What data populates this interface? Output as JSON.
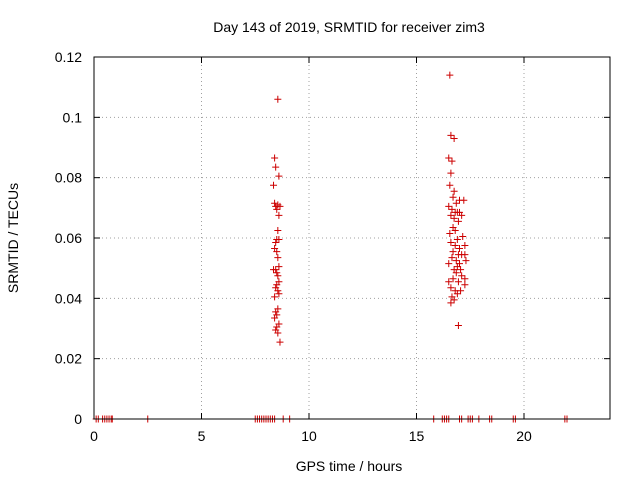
{
  "chart_data": {
    "type": "scatter",
    "title": "Day 143 of 2019, SRMTID for receiver zim3",
    "xlabel": "GPS time / hours",
    "ylabel": "SRMTID / TECUs",
    "xlim": [
      0,
      24
    ],
    "ylim": [
      0,
      0.12
    ],
    "xticks": [
      0,
      5,
      10,
      15,
      20
    ],
    "xtick_labels": [
      "0",
      "5",
      "10",
      "15",
      "20"
    ],
    "yticks": [
      0,
      0.02,
      0.04,
      0.06,
      0.08,
      0.1,
      0.12
    ],
    "ytick_labels": [
      "0",
      "0.02",
      "0.04",
      "0.06",
      "0.08",
      "0.1",
      "0.12"
    ],
    "grid": true,
    "legend": "none",
    "marker": "+",
    "series": [
      {
        "name": "SRMTID",
        "color": "#cc0000",
        "points": [
          [
            0.1,
            0
          ],
          [
            0.2,
            0
          ],
          [
            0.4,
            0
          ],
          [
            0.5,
            0
          ],
          [
            0.6,
            0
          ],
          [
            0.7,
            0
          ],
          [
            0.8,
            0
          ],
          [
            0.85,
            0
          ],
          [
            2.5,
            0
          ],
          [
            7.5,
            0
          ],
          [
            7.6,
            0
          ],
          [
            7.7,
            0
          ],
          [
            7.8,
            0
          ],
          [
            7.9,
            0
          ],
          [
            8.0,
            0
          ],
          [
            8.1,
            0
          ],
          [
            8.2,
            0
          ],
          [
            8.3,
            0
          ],
          [
            8.4,
            0
          ],
          [
            8.8,
            0
          ],
          [
            9.1,
            0
          ],
          [
            15.8,
            0
          ],
          [
            16.2,
            0
          ],
          [
            16.3,
            0
          ],
          [
            16.4,
            0
          ],
          [
            16.5,
            0
          ],
          [
            17.0,
            0
          ],
          [
            17.1,
            0
          ],
          [
            17.4,
            0
          ],
          [
            17.5,
            0
          ],
          [
            17.6,
            0
          ],
          [
            17.9,
            0
          ],
          [
            18.4,
            0
          ],
          [
            18.5,
            0
          ],
          [
            19.5,
            0
          ],
          [
            19.6,
            0
          ],
          [
            21.9,
            0
          ],
          [
            22.0,
            0
          ],
          [
            8.55,
            0.106
          ],
          [
            8.4,
            0.0865
          ],
          [
            8.45,
            0.0835
          ],
          [
            8.6,
            0.0805
          ],
          [
            8.35,
            0.0775
          ],
          [
            8.4,
            0.0715
          ],
          [
            8.45,
            0.0705
          ],
          [
            8.5,
            0.0695
          ],
          [
            8.55,
            0.071
          ],
          [
            8.65,
            0.0705
          ],
          [
            8.6,
            0.0675
          ],
          [
            8.55,
            0.0625
          ],
          [
            8.5,
            0.0595
          ],
          [
            8.45,
            0.0585
          ],
          [
            8.6,
            0.0595
          ],
          [
            8.4,
            0.0565
          ],
          [
            8.5,
            0.0555
          ],
          [
            8.55,
            0.0535
          ],
          [
            8.6,
            0.0505
          ],
          [
            8.45,
            0.0495
          ],
          [
            8.35,
            0.0495
          ],
          [
            8.5,
            0.0485
          ],
          [
            8.55,
            0.0475
          ],
          [
            8.6,
            0.0455
          ],
          [
            8.5,
            0.0445
          ],
          [
            8.45,
            0.0435
          ],
          [
            8.55,
            0.0425
          ],
          [
            8.6,
            0.0415
          ],
          [
            8.4,
            0.0405
          ],
          [
            8.55,
            0.0365
          ],
          [
            8.45,
            0.0355
          ],
          [
            8.5,
            0.0345
          ],
          [
            8.4,
            0.0335
          ],
          [
            8.6,
            0.0315
          ],
          [
            8.5,
            0.0305
          ],
          [
            8.45,
            0.0295
          ],
          [
            8.55,
            0.0285
          ],
          [
            8.65,
            0.0255
          ],
          [
            16.55,
            0.114
          ],
          [
            16.6,
            0.094
          ],
          [
            16.75,
            0.093
          ],
          [
            16.5,
            0.0865
          ],
          [
            16.65,
            0.0855
          ],
          [
            16.6,
            0.0815
          ],
          [
            16.55,
            0.0775
          ],
          [
            16.75,
            0.0755
          ],
          [
            16.7,
            0.0735
          ],
          [
            17.0,
            0.0725
          ],
          [
            17.2,
            0.0725
          ],
          [
            16.85,
            0.0715
          ],
          [
            16.5,
            0.0705
          ],
          [
            16.65,
            0.0695
          ],
          [
            16.8,
            0.0685
          ],
          [
            16.9,
            0.0685
          ],
          [
            17.0,
            0.0685
          ],
          [
            17.1,
            0.0675
          ],
          [
            16.6,
            0.0675
          ],
          [
            16.75,
            0.0665
          ],
          [
            16.95,
            0.0655
          ],
          [
            16.7,
            0.0635
          ],
          [
            16.8,
            0.0625
          ],
          [
            16.55,
            0.0615
          ],
          [
            17.15,
            0.0605
          ],
          [
            16.9,
            0.0595
          ],
          [
            16.6,
            0.0585
          ],
          [
            16.8,
            0.0575
          ],
          [
            17.0,
            0.0565
          ],
          [
            17.25,
            0.0575
          ],
          [
            16.7,
            0.0555
          ],
          [
            16.95,
            0.0545
          ],
          [
            17.1,
            0.0545
          ],
          [
            17.25,
            0.0545
          ],
          [
            16.65,
            0.0535
          ],
          [
            16.85,
            0.0525
          ],
          [
            17.0,
            0.0515
          ],
          [
            17.3,
            0.0525
          ],
          [
            16.5,
            0.0515
          ],
          [
            16.9,
            0.0505
          ],
          [
            16.75,
            0.0495
          ],
          [
            17.05,
            0.0495
          ],
          [
            16.85,
            0.0485
          ],
          [
            17.1,
            0.0475
          ],
          [
            16.7,
            0.0465
          ],
          [
            17.25,
            0.0465
          ],
          [
            16.5,
            0.0455
          ],
          [
            16.95,
            0.0455
          ],
          [
            17.25,
            0.0445
          ],
          [
            16.6,
            0.0435
          ],
          [
            16.8,
            0.0425
          ],
          [
            17.05,
            0.0425
          ],
          [
            16.9,
            0.0415
          ],
          [
            16.65,
            0.0405
          ],
          [
            16.75,
            0.0395
          ],
          [
            16.6,
            0.0385
          ],
          [
            16.95,
            0.031
          ]
        ]
      }
    ]
  }
}
